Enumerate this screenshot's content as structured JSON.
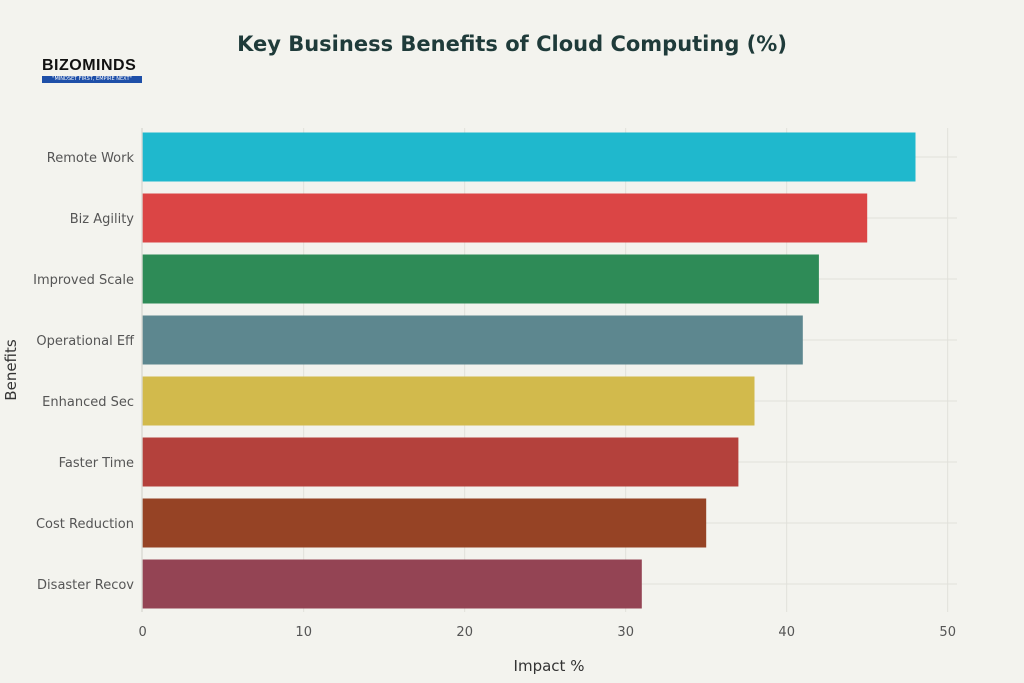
{
  "logo": {
    "text": "BIZOMINDS",
    "tagline": "\"MINDSET FIRST, EMPIRE NEXT\""
  },
  "chart_data": {
    "type": "bar",
    "orientation": "horizontal",
    "title": "Key Business Benefits of Cloud Computing (%)",
    "xlabel": "Impact %",
    "ylabel": "Benefits",
    "xlim": [
      0,
      50
    ],
    "xticks": [
      0,
      10,
      20,
      30,
      40,
      50
    ],
    "grid": true,
    "categories": [
      "Remote Work",
      "Biz Agility",
      "Improved Scale",
      "Operational Eff",
      "Enhanced Sec",
      "Faster Time",
      "Cost Reduction",
      "Disaster Recov"
    ],
    "values": [
      48,
      45,
      42,
      41,
      38,
      37,
      35,
      31
    ],
    "colors": [
      "#1fb8cd",
      "#db4545",
      "#2e8b57",
      "#5d878f",
      "#d2ba4c",
      "#b4413c",
      "#964325",
      "#944454"
    ]
  }
}
